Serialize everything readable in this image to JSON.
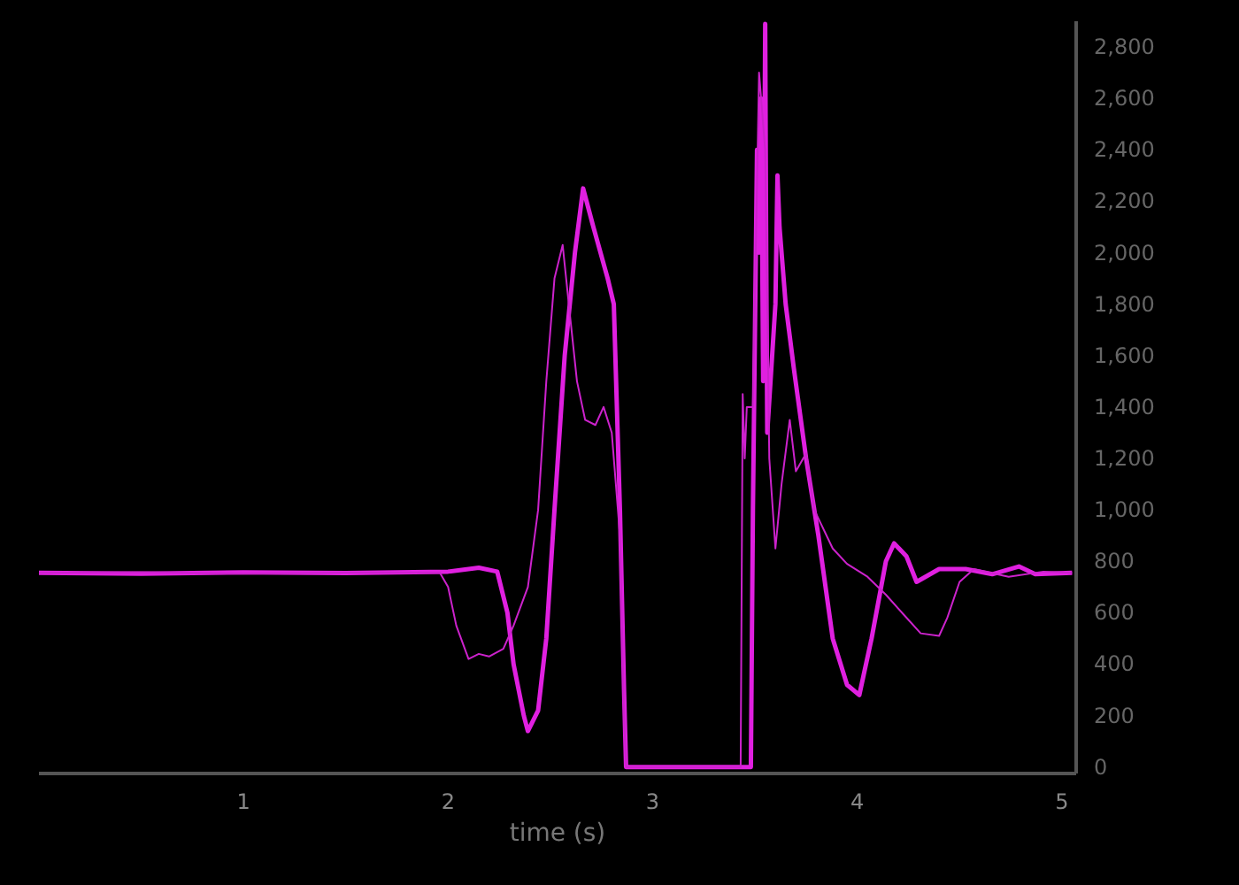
{
  "chart_data": {
    "type": "line",
    "xlabel": "time (s)",
    "xlim": [
      0,
      5.07
    ],
    "xticks": [
      1,
      2,
      3,
      4,
      5
    ],
    "ylim": [
      -25,
      2900
    ],
    "yticks": [
      {
        "value": 0,
        "label": "0"
      },
      {
        "value": 200,
        "label": "200"
      },
      {
        "value": 400,
        "label": "400"
      },
      {
        "value": 600,
        "label": "600"
      },
      {
        "value": 800,
        "label": "800"
      },
      {
        "value": 1000,
        "label": "1,000"
      },
      {
        "value": 1200,
        "label": "1,200"
      },
      {
        "value": 1400,
        "label": "1,400"
      },
      {
        "value": 1600,
        "label": "1,600"
      },
      {
        "value": 1800,
        "label": "1,800"
      },
      {
        "value": 2000,
        "label": "2,000"
      },
      {
        "value": 2200,
        "label": "2,200"
      },
      {
        "value": 2400,
        "label": "2,400"
      },
      {
        "value": 2600,
        "label": "2,600"
      },
      {
        "value": 2800,
        "label": "2,800"
      }
    ],
    "grid": false,
    "marker": "none",
    "series": [
      {
        "color": "#e020e0",
        "x": [
          0,
          0.5,
          1,
          1.5,
          2,
          2.15,
          2.24,
          2.29,
          2.32,
          2.37,
          2.39,
          2.44,
          2.48,
          2.52,
          2.57,
          2.62,
          2.66,
          2.71,
          2.78,
          2.81,
          2.84,
          2.86,
          2.87,
          3.2,
          3.48,
          3.49,
          3.51,
          3.52,
          3.53,
          3.54,
          3.55,
          3.555,
          3.56,
          3.6,
          3.61,
          3.62,
          3.65,
          3.69,
          3.75,
          3.81,
          3.88,
          3.95,
          4.01,
          4.07,
          4.14,
          4.18,
          4.24,
          4.29,
          4.4,
          4.53,
          4.66,
          4.79,
          4.87,
          5.05
        ],
        "values": [
          755,
          752,
          757,
          754,
          760,
          775,
          760,
          600,
          400,
          200,
          140,
          220,
          500,
          1000,
          1600,
          2000,
          2250,
          2100,
          1900,
          1800,
          1000,
          300,
          0,
          0,
          0,
          1000,
          2400,
          2000,
          2600,
          1500,
          2890,
          2000,
          1300,
          1800,
          2300,
          2100,
          1800,
          1550,
          1200,
          900,
          500,
          320,
          280,
          500,
          800,
          870,
          820,
          720,
          770,
          770,
          750,
          780,
          750,
          755
        ]
      },
      {
        "color": "#cc22cc",
        "x": [
          0,
          0.5,
          1,
          1.5,
          1.96,
          2.0,
          2.04,
          2.1,
          2.15,
          2.2,
          2.27,
          2.32,
          2.39,
          2.44,
          2.48,
          2.52,
          2.56,
          2.59,
          2.63,
          2.67,
          2.72,
          2.76,
          2.8,
          2.84,
          2.86,
          2.87,
          3.2,
          3.43,
          3.44,
          3.45,
          3.46,
          3.49,
          3.52,
          3.55,
          3.57,
          3.6,
          3.63,
          3.67,
          3.7,
          3.75,
          3.79,
          3.88,
          3.95,
          4.05,
          4.14,
          4.23,
          4.31,
          4.4,
          4.44,
          4.5,
          4.57,
          4.74,
          4.91,
          5.05
        ],
        "values": [
          755,
          758,
          752,
          756,
          755,
          700,
          550,
          420,
          440,
          430,
          460,
          550,
          700,
          1000,
          1500,
          1900,
          2030,
          1800,
          1500,
          1350,
          1330,
          1400,
          1300,
          900,
          200,
          0,
          0,
          0,
          1450,
          1200,
          1400,
          1400,
          2700,
          2400,
          1200,
          850,
          1100,
          1350,
          1150,
          1220,
          1000,
          850,
          790,
          740,
          670,
          590,
          520,
          510,
          580,
          720,
          770,
          740,
          760,
          755
        ]
      }
    ]
  }
}
